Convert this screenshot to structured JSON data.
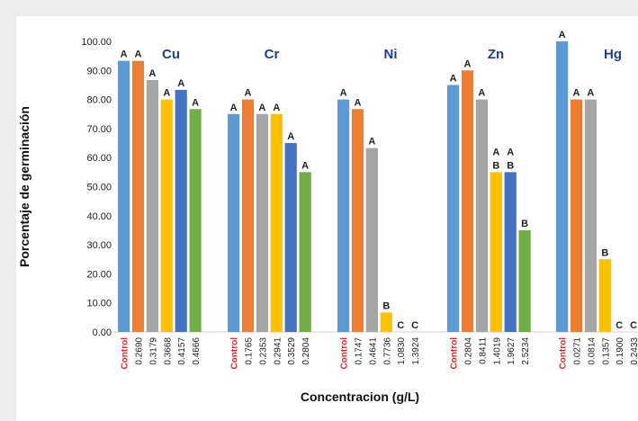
{
  "chart_data": {
    "type": "bar",
    "xlabel": "Concentracion (g/L)",
    "ylabel": "Porcentaje de germinación",
    "ylim": [
      0,
      100
    ],
    "yticks": [
      "0.00",
      "10.00",
      "20.00",
      "30.00",
      "40.00",
      "50.00",
      "60.00",
      "70.00",
      "80.00",
      "90.00",
      "100.00"
    ],
    "grid": false,
    "bar_colors": [
      "#5b9bd5",
      "#ed7d31",
      "#a5a5a5",
      "#ffc000",
      "#4472c4",
      "#70ad47"
    ],
    "control_label_color": "#d92b2b",
    "group_title_color": "#1f3f8a",
    "groups": [
      {
        "name": "Cu",
        "bars": [
          {
            "x": "Control",
            "value": 93.3,
            "label": "A"
          },
          {
            "x": "0.2690",
            "value": 93.3,
            "label": "A"
          },
          {
            "x": "0.3179",
            "value": 86.7,
            "label": "A"
          },
          {
            "x": "0.3668",
            "value": 80.0,
            "label": "A"
          },
          {
            "x": "0.4157",
            "value": 83.3,
            "label": "A"
          },
          {
            "x": "0.4666",
            "value": 76.7,
            "label": "A"
          }
        ]
      },
      {
        "name": "Cr",
        "bars": [
          {
            "x": "Control",
            "value": 75.0,
            "label": "A"
          },
          {
            "x": "0.1765",
            "value": 80.0,
            "label": "A"
          },
          {
            "x": "0.2353",
            "value": 75.0,
            "label": "A"
          },
          {
            "x": "0.2941",
            "value": 75.0,
            "label": "A"
          },
          {
            "x": "0.3529",
            "value": 65.0,
            "label": "A"
          },
          {
            "x": "0.2804",
            "value": 55.0,
            "label": "A"
          }
        ]
      },
      {
        "name": "Ni",
        "bars": [
          {
            "x": "Control",
            "value": 80.0,
            "label": "A"
          },
          {
            "x": "0.1747",
            "value": 76.7,
            "label": "A"
          },
          {
            "x": "0.4641",
            "value": 63.3,
            "label": "A"
          },
          {
            "x": "0.7736",
            "value": 6.7,
            "label": "B"
          },
          {
            "x": "1.0830",
            "value": 0,
            "label": "C"
          },
          {
            "x": "1.3924",
            "value": 0,
            "label": "C"
          }
        ]
      },
      {
        "name": "Zn",
        "bars": [
          {
            "x": "Control",
            "value": 85.0,
            "label": "A"
          },
          {
            "x": "0.2804",
            "value": 90.0,
            "label": "A"
          },
          {
            "x": "0.8411",
            "value": 80.0,
            "label": "A"
          },
          {
            "x": "1.4019",
            "value": 55.0,
            "label": "A\nB"
          },
          {
            "x": "1.9627",
            "value": 55.0,
            "label": "A\nB"
          },
          {
            "x": "2.5234",
            "value": 35.0,
            "label": "B"
          }
        ]
      },
      {
        "name": "Hg",
        "bars": [
          {
            "x": "Control",
            "value": 100.0,
            "label": "A"
          },
          {
            "x": "0.0271",
            "value": 80.0,
            "label": "A"
          },
          {
            "x": "0.0814",
            "value": 80.0,
            "label": "A"
          },
          {
            "x": "0.1357",
            "value": 25.0,
            "label": "B"
          },
          {
            "x": "0.1900",
            "value": 0,
            "label": "C"
          },
          {
            "x": "0.2433",
            "value": 0,
            "label": "C"
          }
        ]
      }
    ]
  }
}
